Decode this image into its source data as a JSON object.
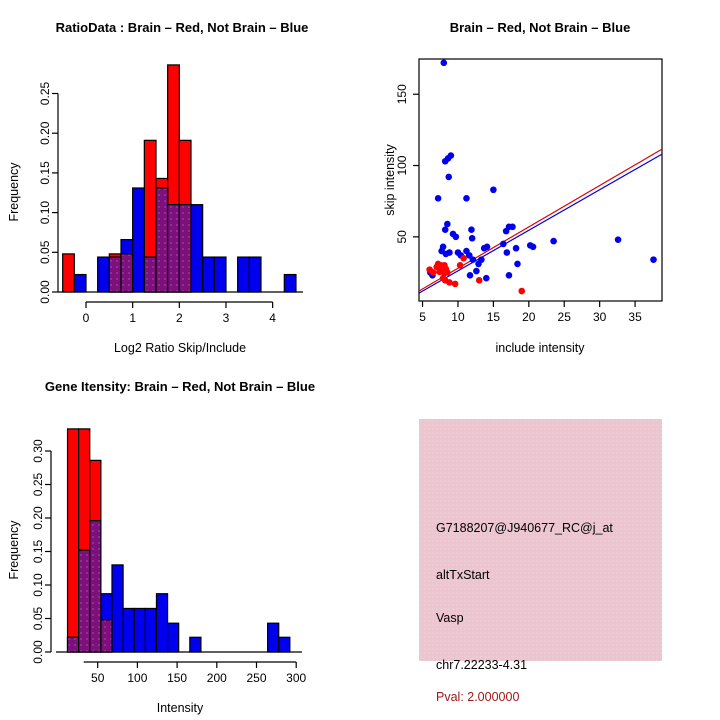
{
  "page": {
    "background": "#ffffff"
  },
  "colors": {
    "red": "#ff0000",
    "blue": "#0000ee",
    "overlap_purple": "#7c117c",
    "overlap_dot": "#aa3caa",
    "fit_line_red": "#e00000",
    "fit_line_blue": "#0000dd",
    "info_background_pink": "#f0c4ce",
    "pval_dark_red": "#a01a1a",
    "axis_black": "#000000"
  },
  "chart_data": [
    {
      "type": "bar",
      "subtype": "overlaid-histogram",
      "title": "RatioData : Brain – Red, Not Brain – Blue",
      "xlabel": "Log2 Ratio Skip/Include",
      "ylabel": "Frequency",
      "x_ticks": [
        0,
        1,
        2,
        3,
        4
      ],
      "y_ticks": [
        "0.00",
        "0.05",
        "0.10",
        "0.15",
        "0.20",
        "0.25"
      ],
      "xlim": [
        -0.6,
        4.6
      ],
      "ylim": [
        0,
        0.29
      ],
      "grid": false,
      "series": [
        {
          "name": "Brain",
          "color": "#ff0000",
          "bars": [
            [
              -0.5,
              -0.25,
              0.048
            ],
            [
              0.5,
              0.75,
              0.048
            ],
            [
              0.75,
              1.0,
              0.048
            ],
            [
              1.25,
              1.5,
              0.191
            ],
            [
              1.5,
              1.75,
              0.143
            ],
            [
              1.75,
              2.0,
              0.286
            ],
            [
              2.0,
              2.25,
              0.191
            ]
          ]
        },
        {
          "name": "Not Brain",
          "color": "#0000ee",
          "bars": [
            [
              -0.25,
              0,
              0.022
            ],
            [
              0.25,
              0.5,
              0.044
            ],
            [
              0.5,
              0.75,
              0.044
            ],
            [
              0.75,
              1.0,
              0.066
            ],
            [
              1.0,
              1.25,
              0.131
            ],
            [
              1.25,
              1.5,
              0.044
            ],
            [
              1.5,
              1.75,
              0.131
            ],
            [
              1.75,
              2.0,
              0.11
            ],
            [
              2.0,
              2.25,
              0.11
            ],
            [
              2.25,
              2.5,
              0.11
            ],
            [
              2.5,
              2.75,
              0.044
            ],
            [
              2.75,
              3.0,
              0.044
            ],
            [
              3.25,
              3.5,
              0.044
            ],
            [
              3.5,
              3.75,
              0.044
            ],
            [
              4.25,
              4.5,
              0.022
            ]
          ]
        }
      ]
    },
    {
      "type": "scatter",
      "title": "Brain – Red, Not Brain – Blue",
      "xlabel": "include intensity",
      "ylabel": "skip intensity",
      "x_ticks": [
        5,
        10,
        15,
        20,
        25,
        30,
        35
      ],
      "y_ticks": [
        50,
        100,
        150
      ],
      "xlim": [
        4.5,
        38.8
      ],
      "ylim": [
        5,
        174.7
      ],
      "grid": false,
      "series": [
        {
          "name": "Not Brain",
          "color": "#0000ee",
          "points": [
            [
              8,
              172
            ],
            [
              8.2,
              103
            ],
            [
              8.6,
              105
            ],
            [
              9,
              107
            ],
            [
              8.7,
              92
            ],
            [
              7.2,
              77
            ],
            [
              11.2,
              77
            ],
            [
              15,
              83
            ],
            [
              8.5,
              59
            ],
            [
              8.2,
              55
            ],
            [
              9.3,
              52
            ],
            [
              9.7,
              50
            ],
            [
              11.9,
              55
            ],
            [
              12,
              49
            ],
            [
              7.9,
              43
            ],
            [
              7.7,
              40
            ],
            [
              8.3,
              38
            ],
            [
              8.8,
              39
            ],
            [
              10,
              39
            ],
            [
              10.4,
              37
            ],
            [
              11.2,
              40
            ],
            [
              11.6,
              37
            ],
            [
              12.1,
              34
            ],
            [
              12.9,
              31
            ],
            [
              13.3,
              34
            ],
            [
              13.7,
              42
            ],
            [
              14.1,
              43
            ],
            [
              16.4,
              45
            ],
            [
              16.8,
              54
            ],
            [
              17.2,
              57
            ],
            [
              17.7,
              57
            ],
            [
              16.9,
              39
            ],
            [
              18.2,
              42
            ],
            [
              18.4,
              31
            ],
            [
              17.2,
              23
            ],
            [
              20.2,
              44
            ],
            [
              20.6,
              43
            ],
            [
              23.5,
              47
            ],
            [
              32.6,
              48
            ],
            [
              37.6,
              34
            ],
            [
              11.7,
              23
            ],
            [
              12.6,
              26
            ],
            [
              14,
              21
            ],
            [
              6.1,
              25
            ],
            [
              6.4,
              23
            ]
          ]
        },
        {
          "name": "Brain",
          "color": "#ff0000",
          "points": [
            [
              6,
              27
            ],
            [
              6.5,
              25
            ],
            [
              7,
              29
            ],
            [
              7.2,
              31
            ],
            [
              7.4,
              25.5
            ],
            [
              7.6,
              30
            ],
            [
              7.8,
              27
            ],
            [
              8,
              25
            ],
            [
              8.1,
              30
            ],
            [
              8.3,
              27.5
            ],
            [
              8.5,
              25
            ],
            [
              7.9,
              21
            ],
            [
              8.2,
              19.5
            ],
            [
              8.8,
              18
            ],
            [
              9.6,
              17
            ],
            [
              10.3,
              30
            ],
            [
              10.8,
              35
            ],
            [
              13,
              19.5
            ],
            [
              19,
              12
            ]
          ]
        }
      ],
      "fit_lines": [
        {
          "name": "brain-fit",
          "color": "#e00000",
          "x1": 4.5,
          "y1": 12,
          "x2": 38.8,
          "y2": 111.5
        },
        {
          "name": "not-brain-fit",
          "color": "#0000dd",
          "x1": 4.5,
          "y1": 10.5,
          "x2": 38.8,
          "y2": 108
        }
      ]
    },
    {
      "type": "bar",
      "subtype": "overlaid-histogram",
      "title": "Gene Itensity: Brain – Red, Not Brain – Blue",
      "xlabel": "Intensity",
      "ylabel": "Frequency",
      "x_ticks": [
        50,
        100,
        150,
        200,
        250,
        300
      ],
      "y_ticks": [
        "0.00",
        "0.05",
        "0.10",
        "0.15",
        "0.20",
        "0.25",
        "0.30"
      ],
      "xlim": [
        10,
        305
      ],
      "ylim": [
        0,
        0.335
      ],
      "grid": false,
      "series": [
        {
          "name": "Brain",
          "color": "#ff0000",
          "bars": [
            [
              12,
              26,
              0.333
            ],
            [
              26,
              40,
              0.333
            ],
            [
              40,
              54,
              0.286
            ],
            [
              54,
              68,
              0.048
            ]
          ]
        },
        {
          "name": "Not Brain",
          "color": "#0000ee",
          "bars": [
            [
              12,
              26,
              0.022
            ],
            [
              26,
              40,
              0.152
            ],
            [
              40,
              54,
              0.196
            ],
            [
              54,
              68,
              0.087
            ],
            [
              68,
              82,
              0.13
            ],
            [
              82,
              96,
              0.065
            ],
            [
              96,
              110,
              0.065
            ],
            [
              110,
              124,
              0.065
            ],
            [
              124,
              138,
              0.087
            ],
            [
              138,
              152,
              0.043
            ],
            [
              166,
              180,
              0.022
            ],
            [
              264,
              278,
              0.043
            ],
            [
              278,
              292,
              0.022
            ]
          ]
        }
      ]
    }
  ],
  "info_panel": {
    "background": "#f0c4ce",
    "lines": [
      {
        "text": "G7188207@J940677_RC@j_at",
        "color": "#000000"
      },
      {
        "text": "altTxStart",
        "color": "#000000"
      },
      {
        "text": "Vasp",
        "color": "#000000"
      },
      {
        "text": "chr7.22233-4.31",
        "color": "#000000"
      },
      {
        "text": "Pval: 2.000000",
        "color": "#a01a1a"
      }
    ]
  }
}
